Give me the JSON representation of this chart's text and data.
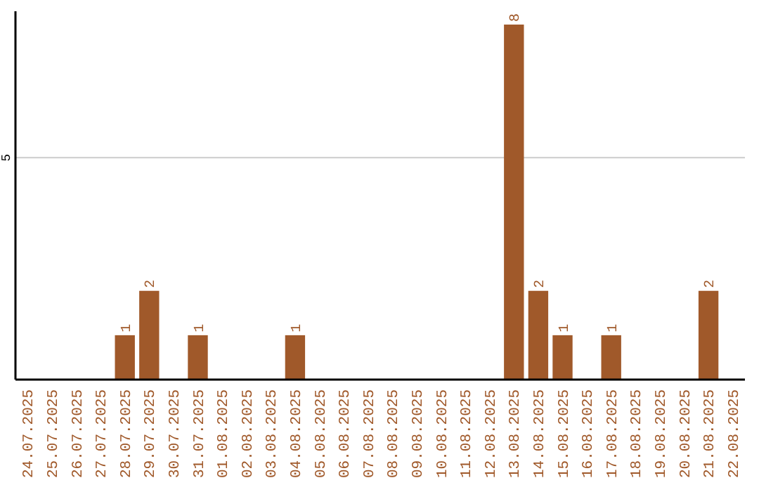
{
  "chart_data": {
    "type": "bar",
    "categories": [
      "24.07.2025",
      "25.07.2025",
      "26.07.2025",
      "27.07.2025",
      "28.07.2025",
      "29.07.2025",
      "30.07.2025",
      "31.07.2025",
      "01.08.2025",
      "02.08.2025",
      "03.08.2025",
      "04.08.2025",
      "05.08.2025",
      "06.08.2025",
      "07.08.2025",
      "08.08.2025",
      "09.08.2025",
      "10.08.2025",
      "11.08.2025",
      "12.08.2025",
      "13.08.2025",
      "14.08.2025",
      "15.08.2025",
      "16.08.2025",
      "17.08.2025",
      "18.08.2025",
      "19.08.2025",
      "20.08.2025",
      "21.08.2025",
      "22.08.2025"
    ],
    "values": [
      0,
      0,
      0,
      0,
      1,
      2,
      0,
      1,
      0,
      0,
      0,
      1,
      0,
      0,
      0,
      0,
      0,
      0,
      0,
      0,
      8,
      2,
      1,
      0,
      1,
      0,
      0,
      0,
      2,
      0
    ],
    "value_labels": [
      null,
      null,
      null,
      null,
      "1",
      "2",
      null,
      "1",
      null,
      null,
      null,
      "1",
      null,
      null,
      null,
      null,
      null,
      null,
      null,
      null,
      "8",
      "2",
      "1",
      null,
      "1",
      null,
      null,
      null,
      "2",
      null
    ],
    "color": "#a0592a",
    "ylim": [
      0,
      8.3
    ],
    "yticks": [
      5
    ],
    "grid": "y"
  }
}
